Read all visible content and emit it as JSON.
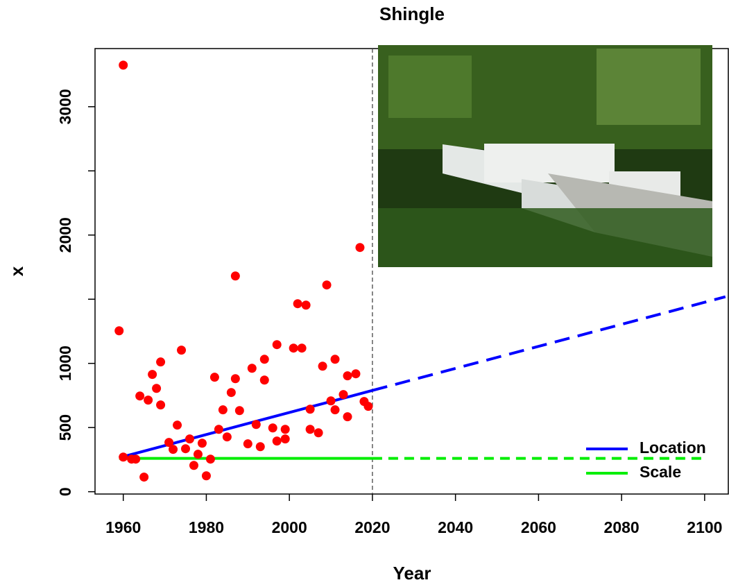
{
  "chart_data": {
    "type": "scatter",
    "title": "Shingle",
    "x_label": "Year",
    "y_label": "x",
    "xlim": [
      1953.2,
      2105.7
    ],
    "ylim": [
      -18,
      3453
    ],
    "xticks": [
      1960,
      1980,
      2000,
      2020,
      2040,
      2060,
      2080,
      2100
    ],
    "yticks": [
      0,
      500,
      1000,
      2000,
      3000
    ],
    "yticks_unlabeled": [
      1500,
      2500
    ],
    "vline": 2020,
    "legend": "bottom-right",
    "points": {
      "color": "#ff0000",
      "x": [
        1959,
        1960,
        1960,
        1962,
        1963,
        1964,
        1965,
        1966,
        1967,
        1968,
        1969,
        1969,
        1971,
        1972,
        1973,
        1974,
        1975,
        1976,
        1977,
        1978,
        1979,
        1980,
        1981,
        1982,
        1983,
        1984,
        1985,
        1986,
        1987,
        1987,
        1988,
        1990,
        1991,
        1992,
        1993,
        1994,
        1994,
        1996,
        1997,
        1997,
        1999,
        1999,
        2001,
        2002,
        2003,
        2004,
        2005,
        2005,
        2007,
        2008,
        2009,
        2010,
        2011,
        2011,
        2013,
        2014,
        2014,
        2016,
        2017,
        2018,
        2019
      ],
      "values": [
        1254,
        3324,
        270,
        254,
        254,
        746,
        114,
        714,
        914,
        805,
        1011,
        676,
        384,
        330,
        519,
        1103,
        335,
        411,
        205,
        292,
        378,
        124,
        254,
        892,
        486,
        638,
        427,
        773,
        1681,
        881,
        632,
        373,
        962,
        524,
        351,
        1032,
        870,
        497,
        395,
        1146,
        411,
        486,
        1119,
        1465,
        1119,
        1454,
        643,
        486,
        459,
        978,
        1611,
        708,
        1032,
        638,
        757,
        903,
        584,
        919,
        1903,
        703,
        665
      ]
    },
    "series": [
      {
        "name": "Location",
        "color": "#0000ff",
        "x": [
          1959,
          2020
        ],
        "values": [
          265,
          789
        ],
        "projection": {
          "x": [
            2020,
            2105
          ],
          "values": [
            789,
            1519
          ]
        }
      },
      {
        "name": "Scale",
        "color": "#00ee00",
        "x": [
          1959,
          2020
        ],
        "values": [
          260,
          260
        ],
        "projection": {
          "x": [
            2020,
            2100
          ],
          "values": [
            260,
            260
          ]
        }
      }
    ]
  }
}
